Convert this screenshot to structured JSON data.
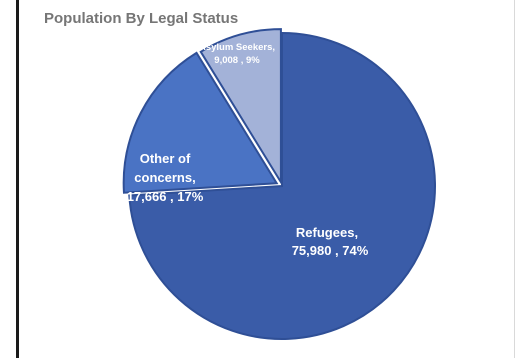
{
  "chart_data": {
    "type": "pie",
    "title": "Population By Legal Status",
    "slices": [
      {
        "name": "Refugees,",
        "value": 75980,
        "value_label": "75,980",
        "percent_label": "74%",
        "color": "#3a5ca8"
      },
      {
        "name": "Other of concerns,",
        "value": 17666,
        "value_label": "17,666",
        "percent_label": "17%",
        "color": "#4a73c4",
        "exploded": true
      },
      {
        "name": "Asylum Seekers,",
        "value": 9008,
        "value_label": "9,008",
        "percent_label": "9%",
        "color": "#a3b2d8",
        "exploded": true
      }
    ],
    "legend": "none",
    "data_labels": "inside"
  }
}
